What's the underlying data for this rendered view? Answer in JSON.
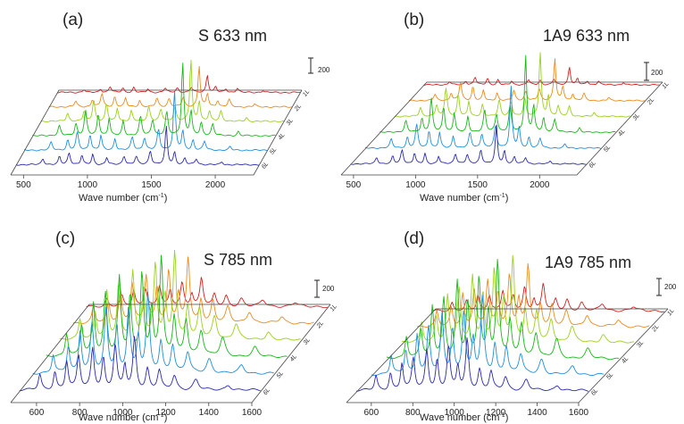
{
  "figure": {
    "colors": [
      "#d42020",
      "#ee8a1a",
      "#9ad21c",
      "#18b818",
      "#1f8fe0",
      "#2a2ab0"
    ]
  },
  "chart_data": [
    {
      "type": "line",
      "panel": "(a)",
      "title": "S 633 nm",
      "xlabel": "Wave number (cm",
      "xlabel_sup": "-1",
      "xlabel_end": ")",
      "xlim": [
        400,
        2300
      ],
      "xticks": [
        "500",
        "1000",
        "1500",
        "2000"
      ],
      "scale_bar": "200",
      "series_names": [
        "1L",
        "2L",
        "3L",
        "4L",
        "5L",
        "6L"
      ],
      "peaks": [
        {
          "x": 610,
          "w": 12,
          "a": [
            20,
            40,
            55,
            70,
            55,
            40
          ]
        },
        {
          "x": 740,
          "w": 10,
          "a": [
            25,
            50,
            70,
            85,
            70,
            55
          ]
        },
        {
          "x": 815,
          "w": 12,
          "a": [
            40,
            90,
            140,
            170,
            120,
            80
          ]
        },
        {
          "x": 915,
          "w": 10,
          "a": [
            30,
            70,
            120,
            150,
            110,
            65
          ]
        },
        {
          "x": 1000,
          "w": 10,
          "a": [
            35,
            60,
            90,
            120,
            100,
            70
          ]
        },
        {
          "x": 1110,
          "w": 10,
          "a": [
            25,
            45,
            70,
            100,
            80,
            50
          ]
        },
        {
          "x": 1245,
          "w": 12,
          "a": [
            30,
            60,
            100,
            130,
            90,
            60
          ]
        },
        {
          "x": 1340,
          "w": 12,
          "a": [
            30,
            55,
            80,
            110,
            85,
            55
          ]
        },
        {
          "x": 1450,
          "w": 12,
          "a": [
            35,
            65,
            100,
            160,
            140,
            95
          ]
        },
        {
          "x": 1575,
          "w": 10,
          "a": [
            120,
            280,
            420,
            500,
            400,
            260
          ]
        },
        {
          "x": 1640,
          "w": 10,
          "a": [
            40,
            90,
            140,
            170,
            130,
            85
          ]
        },
        {
          "x": 1720,
          "w": 10,
          "a": [
            25,
            45,
            70,
            90,
            70,
            45
          ]
        },
        {
          "x": 1810,
          "w": 12,
          "a": [
            30,
            50,
            70,
            80,
            60,
            40
          ]
        },
        {
          "x": 2010,
          "w": 10,
          "a": [
            15,
            20,
            25,
            30,
            25,
            20
          ]
        }
      ]
    },
    {
      "type": "line",
      "panel": "(b)",
      "title": "1A9 633 nm",
      "xlabel": "Wave number (cm",
      "xlabel_sup": "-1",
      "xlabel_end": ")",
      "xlim": [
        400,
        2300
      ],
      "xticks": [
        "500",
        "1000",
        "1500",
        "2000"
      ],
      "scale_bar": "200",
      "series_names": [
        "1L",
        "2L",
        "3L",
        "4L",
        "5L",
        "6L"
      ],
      "peaks": [
        {
          "x": 610,
          "w": 12,
          "a": [
            25,
            50,
            70,
            90,
            70,
            50
          ]
        },
        {
          "x": 740,
          "w": 10,
          "a": [
            30,
            60,
            90,
            110,
            85,
            60
          ]
        },
        {
          "x": 815,
          "w": 12,
          "a": [
            60,
            140,
            220,
            260,
            180,
            110
          ]
        },
        {
          "x": 915,
          "w": 10,
          "a": [
            50,
            110,
            170,
            200,
            140,
            85
          ]
        },
        {
          "x": 1000,
          "w": 10,
          "a": [
            40,
            80,
            120,
            150,
            120,
            80
          ]
        },
        {
          "x": 1110,
          "w": 10,
          "a": [
            30,
            60,
            90,
            120,
            95,
            60
          ]
        },
        {
          "x": 1245,
          "w": 12,
          "a": [
            40,
            80,
            130,
            170,
            120,
            80
          ]
        },
        {
          "x": 1340,
          "w": 12,
          "a": [
            35,
            70,
            110,
            140,
            110,
            70
          ]
        },
        {
          "x": 1450,
          "w": 12,
          "a": [
            45,
            90,
            140,
            200,
            170,
            110
          ]
        },
        {
          "x": 1575,
          "w": 10,
          "a": [
            140,
            330,
            500,
            600,
            480,
            300
          ]
        },
        {
          "x": 1640,
          "w": 10,
          "a": [
            50,
            110,
            170,
            210,
            160,
            100
          ]
        },
        {
          "x": 1720,
          "w": 10,
          "a": [
            30,
            55,
            85,
            110,
            85,
            55
          ]
        },
        {
          "x": 1810,
          "w": 12,
          "a": [
            30,
            55,
            80,
            100,
            75,
            50
          ]
        },
        {
          "x": 2010,
          "w": 10,
          "a": [
            20,
            25,
            30,
            35,
            30,
            25
          ]
        }
      ]
    },
    {
      "type": "line",
      "panel": "(c)",
      "title": "S 785 nm",
      "xlabel": "Wave number (cm",
      "xlabel_sup": "-1",
      "xlabel_end": ")",
      "xlim": [
        480,
        1600
      ],
      "xticks": [
        "600",
        "800",
        "1000",
        "1200",
        "1400",
        "1600"
      ],
      "scale_bar": "200",
      "series_names": [
        "1L",
        "2L",
        "3L",
        "4L",
        "5L",
        "6L"
      ],
      "peaks": [
        {
          "x": 575,
          "w": 8,
          "a": [
            30,
            60,
            80,
            90,
            70,
            60
          ]
        },
        {
          "x": 645,
          "w": 8,
          "a": [
            40,
            80,
            110,
            120,
            100,
            70
          ]
        },
        {
          "x": 700,
          "w": 8,
          "a": [
            60,
            130,
            180,
            200,
            160,
            110
          ]
        },
        {
          "x": 755,
          "w": 9,
          "a": [
            70,
            150,
            210,
            240,
            190,
            130
          ]
        },
        {
          "x": 820,
          "w": 9,
          "a": [
            80,
            180,
            260,
            300,
            240,
            160
          ]
        },
        {
          "x": 870,
          "w": 8,
          "a": [
            60,
            140,
            200,
            230,
            180,
            120
          ]
        },
        {
          "x": 925,
          "w": 9,
          "a": [
            90,
            200,
            290,
            320,
            250,
            170
          ]
        },
        {
          "x": 970,
          "w": 8,
          "a": [
            50,
            110,
            160,
            180,
            140,
            95
          ]
        },
        {
          "x": 1015,
          "w": 9,
          "a": [
            110,
            250,
            340,
            380,
            300,
            200
          ]
        },
        {
          "x": 1075,
          "w": 9,
          "a": [
            45,
            90,
            130,
            150,
            120,
            80
          ]
        },
        {
          "x": 1130,
          "w": 10,
          "a": [
            40,
            85,
            120,
            140,
            110,
            75
          ]
        },
        {
          "x": 1200,
          "w": 12,
          "a": [
            30,
            60,
            90,
            100,
            80,
            55
          ]
        },
        {
          "x": 1300,
          "w": 14,
          "a": [
            25,
            45,
            60,
            70,
            55,
            40
          ]
        },
        {
          "x": 1450,
          "w": 14,
          "a": [
            15,
            25,
            30,
            35,
            30,
            20
          ]
        }
      ]
    },
    {
      "type": "line",
      "panel": "(d)",
      "title": "1A9 785 nm",
      "xlabel": "Wave number (cm",
      "xlabel_sup": "-1",
      "xlabel_end": ")",
      "xlim": [
        480,
        1600
      ],
      "xticks": [
        "600",
        "800",
        "1000",
        "1200",
        "1400",
        "1600"
      ],
      "scale_bar": "200",
      "series_names": [
        "1L",
        "2L",
        "3L",
        "4L",
        "5L",
        "6L"
      ],
      "peaks": [
        {
          "x": 575,
          "w": 8,
          "a": [
            30,
            55,
            75,
            85,
            70,
            55
          ]
        },
        {
          "x": 645,
          "w": 8,
          "a": [
            35,
            70,
            100,
            110,
            90,
            65
          ]
        },
        {
          "x": 700,
          "w": 8,
          "a": [
            55,
            120,
            170,
            190,
            150,
            100
          ]
        },
        {
          "x": 755,
          "w": 9,
          "a": [
            60,
            135,
            195,
            220,
            175,
            120
          ]
        },
        {
          "x": 820,
          "w": 9,
          "a": [
            75,
            170,
            245,
            280,
            220,
            150
          ]
        },
        {
          "x": 870,
          "w": 8,
          "a": [
            55,
            130,
            185,
            210,
            165,
            110
          ]
        },
        {
          "x": 925,
          "w": 9,
          "a": [
            85,
            190,
            270,
            300,
            235,
            160
          ]
        },
        {
          "x": 970,
          "w": 8,
          "a": [
            45,
            100,
            150,
            170,
            130,
            90
          ]
        },
        {
          "x": 1015,
          "w": 9,
          "a": [
            100,
            230,
            320,
            360,
            285,
            190
          ]
        },
        {
          "x": 1075,
          "w": 9,
          "a": [
            40,
            85,
            120,
            140,
            110,
            75
          ]
        },
        {
          "x": 1130,
          "w": 10,
          "a": [
            40,
            80,
            115,
            130,
            105,
            70
          ]
        },
        {
          "x": 1200,
          "w": 12,
          "a": [
            30,
            55,
            85,
            95,
            75,
            50
          ]
        },
        {
          "x": 1300,
          "w": 14,
          "a": [
            25,
            45,
            60,
            70,
            55,
            40
          ]
        },
        {
          "x": 1450,
          "w": 14,
          "a": [
            15,
            25,
            30,
            35,
            30,
            20
          ]
        }
      ]
    }
  ]
}
